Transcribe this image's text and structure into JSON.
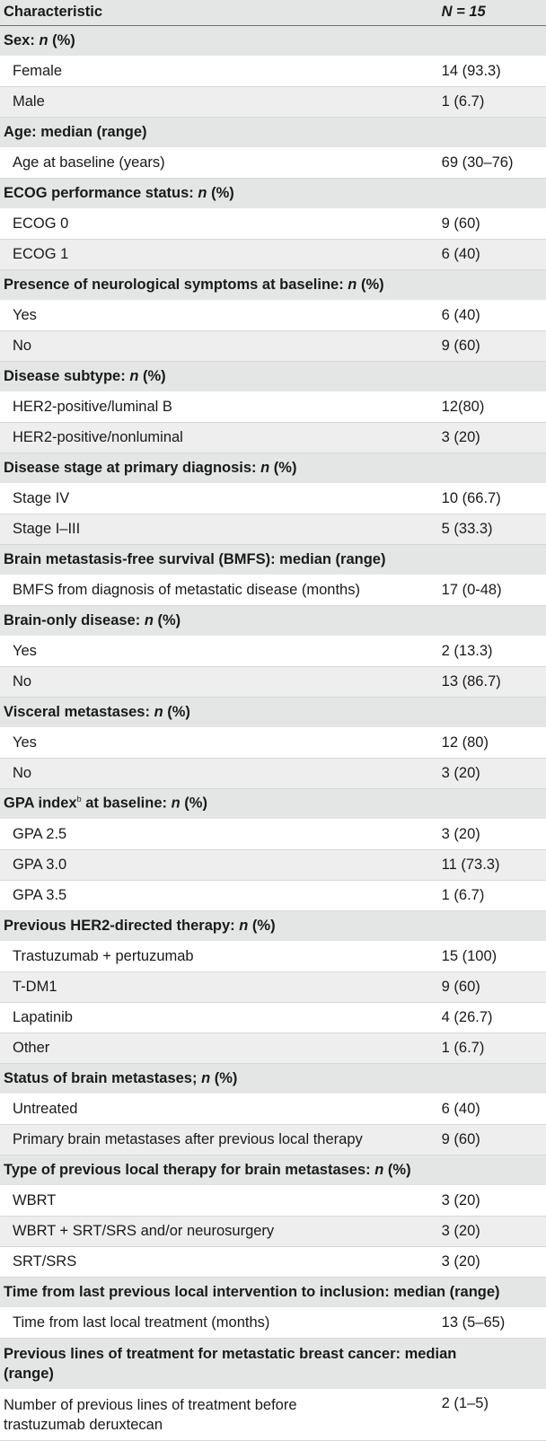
{
  "header": {
    "characteristic": "Characteristic",
    "n": "N = 15"
  },
  "sections": [
    {
      "title": "Sex: n (%)",
      "rows": [
        [
          "Female",
          "14 (93.3)"
        ],
        [
          "Male",
          "1 (6.7)"
        ]
      ]
    },
    {
      "title": "Age: median (range)",
      "rows": [
        [
          "Age at baseline (years)",
          "69 (30–76)"
        ]
      ]
    },
    {
      "title": "ECOG performance status: n (%)",
      "rows": [
        [
          "ECOG 0",
          "9 (60)"
        ],
        [
          "ECOG 1",
          "6 (40)"
        ]
      ]
    },
    {
      "title": "Presence of neurological symptoms at baseline: n (%)",
      "rows": [
        [
          "Yes",
          "6 (40)"
        ],
        [
          "No",
          "9 (60)"
        ]
      ]
    },
    {
      "title": "Disease subtype: n (%)",
      "rows": [
        [
          "HER2-positive/luminal B",
          "12(80)"
        ],
        [
          "HER2-positive/nonluminal",
          "3 (20)"
        ]
      ]
    },
    {
      "title": "Disease stage at primary diagnosis: n (%)",
      "rows": [
        [
          "Stage IV",
          "10 (66.7)"
        ],
        [
          "Stage I–III",
          "5 (33.3)"
        ]
      ]
    },
    {
      "title": "Brain metastasis-free survival (BMFS): median (range)",
      "rows": [
        [
          "BMFS from diagnosis of metastatic disease (months)",
          "17 (0-48)"
        ]
      ]
    },
    {
      "title": "Brain-only disease: n (%)",
      "rows": [
        [
          "Yes",
          "2 (13.3)"
        ],
        [
          "No",
          "13 (86.7)"
        ]
      ]
    },
    {
      "title": "Visceral metastases: n (%)",
      "rows": [
        [
          "Yes",
          "12 (80)"
        ],
        [
          "No",
          "3 (20)"
        ]
      ]
    },
    {
      "title": "GPA index b at baseline: n (%)",
      "rows": [
        [
          "GPA 2.5",
          "3 (20)"
        ],
        [
          "GPA 3.0",
          "11 (73.3)"
        ],
        [
          "GPA 3.5",
          "1 (6.7)"
        ]
      ]
    },
    {
      "title": "Previous HER2-directed therapy: n (%)",
      "rows": [
        [
          "Trastuzumab + pertuzumab",
          "15 (100)"
        ],
        [
          "T-DM1",
          "9 (60)"
        ],
        [
          "Lapatinib",
          "4 (26.7)"
        ],
        [
          "Other",
          "1 (6.7)"
        ]
      ]
    },
    {
      "title": "Status of brain metastases; n (%)",
      "rows": [
        [
          "Untreated",
          "6 (40)"
        ],
        [
          "Primary brain metastases after previous local therapy",
          "9 (60)"
        ]
      ]
    },
    {
      "title": "Type of previous local therapy for brain metastases: n (%)",
      "rows": [
        [
          "WBRT",
          "3 (20)"
        ],
        [
          "WBRT + SRT/SRS and/or neurosurgery",
          "3 (20)"
        ],
        [
          "SRT/SRS",
          "3 (20)"
        ]
      ]
    },
    {
      "title": "Time from last previous local intervention to inclusion: median (range)",
      "rows": [
        [
          "Time from last local treatment (months)",
          "13 (5–65)"
        ]
      ]
    },
    {
      "title": "Previous lines of treatment for metastatic breast cancer: median (range)",
      "rows": [
        [
          "Number of previous lines of treatment before trastuzumab deruxtecan",
          "2 (1–5)"
        ]
      ]
    }
  ]
}
